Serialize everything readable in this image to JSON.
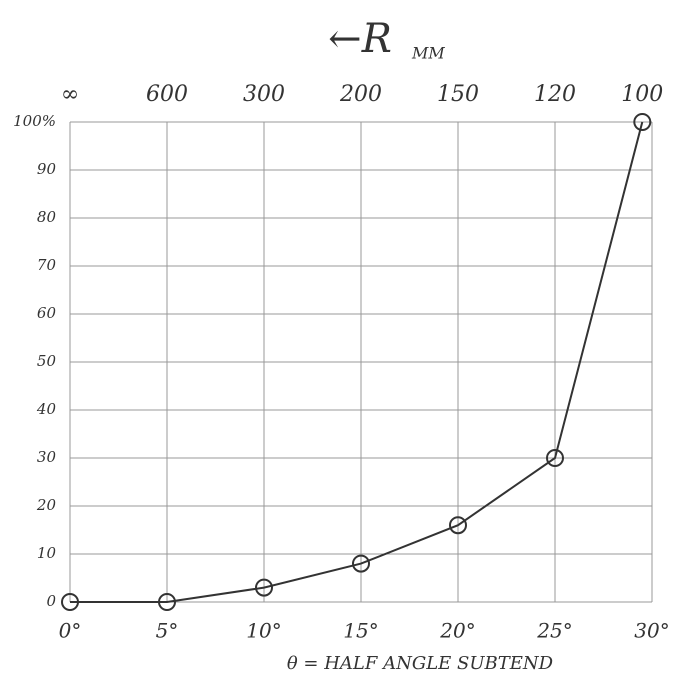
{
  "chart_data": {
    "type": "line",
    "top_axis_label": "←R",
    "top_axis_label_sub": "MM",
    "x_label": "θ = HALF ANGLE SUBTEND",
    "x": [
      0,
      5,
      10,
      15,
      20,
      25,
      29.5
    ],
    "series": [
      {
        "color": "#333333",
        "values": [
          0,
          0,
          3,
          8,
          16,
          30,
          100
        ]
      }
    ],
    "xlim": [
      0,
      30
    ],
    "xticks": [
      {
        "value": 0,
        "label": "0°"
      },
      {
        "value": 5,
        "label": "5°"
      },
      {
        "value": 10,
        "label": "10°"
      },
      {
        "value": 15,
        "label": "15°"
      },
      {
        "value": 20,
        "label": "20°"
      },
      {
        "value": 25,
        "label": "25°"
      },
      {
        "value": 30,
        "label": "30°"
      }
    ],
    "top_ticks": [
      {
        "value": 0,
        "label": "∞"
      },
      {
        "value": 5,
        "label": "600"
      },
      {
        "value": 10,
        "label": "300"
      },
      {
        "value": 15,
        "label": "200"
      },
      {
        "value": 20,
        "label": "150"
      },
      {
        "value": 25,
        "label": "120"
      },
      {
        "value": 29.5,
        "label": "100"
      }
    ],
    "ylim": [
      0,
      100
    ],
    "yticks": [
      0,
      10,
      20,
      30,
      40,
      50,
      60,
      70,
      80,
      90,
      {
        "value": 100,
        "label": "100%"
      }
    ],
    "grid": true
  }
}
